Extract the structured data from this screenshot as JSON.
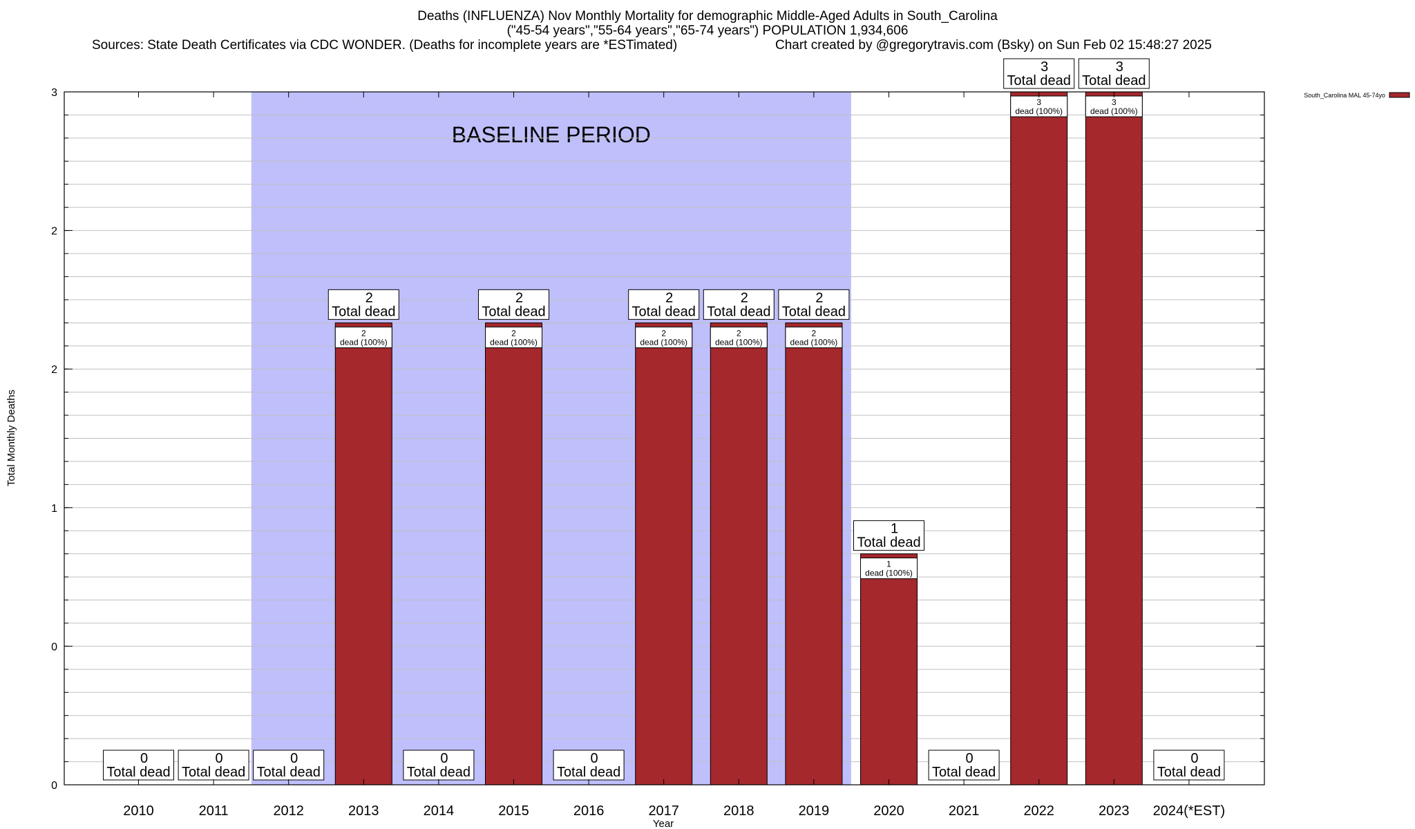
{
  "title": {
    "line1": "Deaths (INFLUENZA) Nov Monthly Mortality for demographic Middle-Aged Adults in South_Carolina",
    "line2": "(\"45-54 years\",\"55-64 years\",\"65-74 years\") POPULATION 1,934,606",
    "sources": "Sources: State Death Certificates via CDC WONDER. (Deaths for incomplete years are *ESTimated)",
    "credit": "Chart created by @gregorytravis.com (Bsky) on Sun Feb 02 15:48:27 2025"
  },
  "colors": {
    "bar": "#a4282c",
    "baseline_shade": "#bfbffc",
    "grid": "#c0c0c0"
  },
  "chart_data": {
    "type": "bar",
    "xlabel": "Year",
    "ylabel": "Total Monthly Deaths",
    "ylim": [
      0,
      3
    ],
    "y_tick_labels": [
      "0",
      "0",
      "1",
      "2",
      "2",
      "3"
    ],
    "categories": [
      "2010",
      "2011",
      "2012",
      "2013",
      "2014",
      "2015",
      "2016",
      "2017",
      "2018",
      "2019",
      "2020",
      "2021",
      "2022",
      "2023",
      "2024(*EST)"
    ],
    "series": [
      {
        "name": "South_Carolina MAL 45-74yo",
        "values": [
          0,
          0,
          0,
          2,
          0,
          2,
          0,
          2,
          2,
          2,
          1,
          0,
          3,
          3,
          0
        ]
      }
    ],
    "total_labels": [
      "0",
      "0",
      "0",
      "2",
      "0",
      "2",
      "0",
      "2",
      "2",
      "2",
      "1",
      "0",
      "3",
      "3",
      "0"
    ],
    "total_suffix": "Total dead",
    "inner_labels": [
      "",
      "",
      "",
      "2",
      "",
      "2",
      "",
      "2",
      "2",
      "2",
      "1",
      "",
      "3",
      "3",
      ""
    ],
    "inner_suffix": "dead (100%)",
    "baseline": {
      "label": "BASELINE PERIOD",
      "from": "2012",
      "to": "2019"
    },
    "legend_position": "top-right",
    "grid": true
  }
}
